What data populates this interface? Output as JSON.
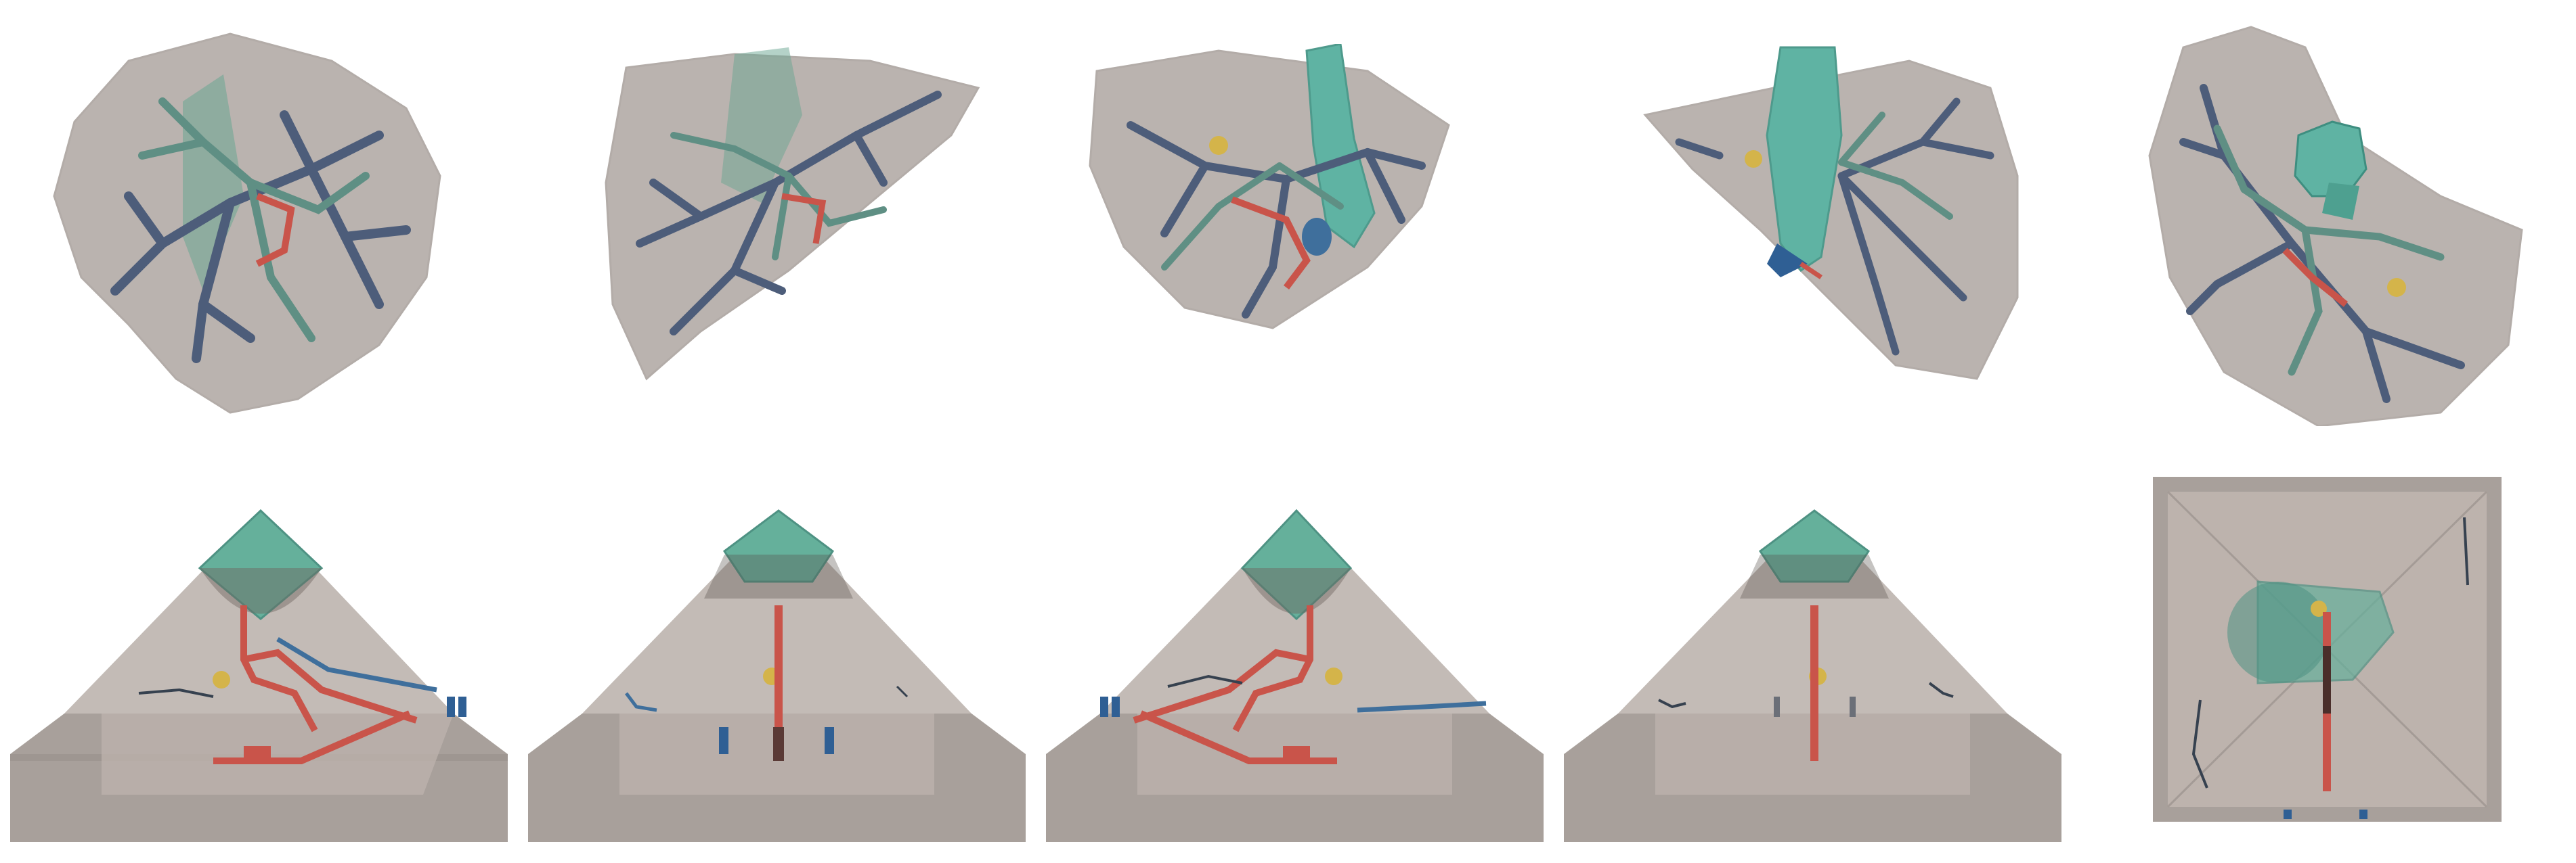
{
  "figure": {
    "rows": 2,
    "columns": 5,
    "top_row": {
      "subject": "liver-render",
      "views": [
        "front",
        "front-tilted",
        "posterior",
        "lateral",
        "top"
      ]
    },
    "bottom_row": {
      "subject": "pyramid-phantom",
      "views": [
        "front",
        "front-tilted",
        "posterior",
        "lateral",
        "top"
      ]
    }
  },
  "colors": {
    "background": "#ffffff",
    "liver_surface": "#a39a95",
    "portal_vessels": "#5f8f84",
    "hepatic_vessels": "#4d5d7a",
    "arteries": "#c9544a",
    "vena_cava": "#5fb3a3",
    "tumor_marker": "#d4b44a",
    "pyramid_face": "#bdb3ad",
    "pyramid_base": "#a8a09b",
    "pyramid_cap": "#65b09b",
    "phantom_tube": "#c9544a",
    "phantom_blue": "#3f6f9c",
    "phantom_dark": "#36414f"
  }
}
